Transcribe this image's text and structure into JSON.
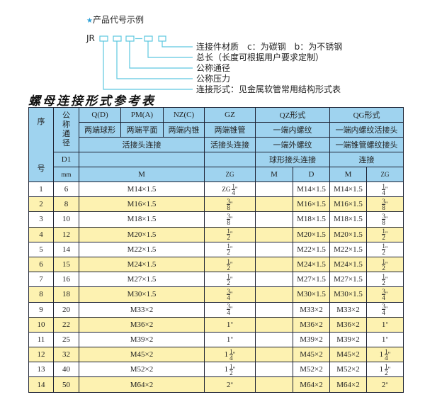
{
  "example": {
    "star_icon": "star",
    "heading": "产品代号示例",
    "code_prefix": "JR",
    "dash": "-",
    "line_color": "#5ec8e0",
    "labels": [
      "连接件材质　c：为碳钢　b：为不锈钢",
      "总长（长度可根据用户要求定制）",
      "公称通径",
      "公称压力",
      "连接形式：见金属软管常用结构形式表"
    ]
  },
  "table_title": "螺母连接形式参考表",
  "table": {
    "header": {
      "seq_top": "序",
      "seq_bottom": "号",
      "nominal": "公称通径",
      "qd": "Q(D)",
      "pma": "PM(A)",
      "nzc": "NZ(C)",
      "gz": "GZ",
      "qz": "QZ形式",
      "qg": "QG形式",
      "r2": [
        "两端球形",
        "两端平面",
        "两端内锥",
        "两端锥管",
        "一端内螺纹",
        "一端内螺纹活接头"
      ],
      "r3": [
        "活接头连接",
        "活接头连接",
        "一端外螺纹",
        "一端锥管螺纹接头"
      ],
      "d1": "D1",
      "r4_qz": "球形接头连接",
      "r4_qg": "连接",
      "mm": "mm",
      "r5": [
        "M",
        "ZG",
        "M",
        "D",
        "M",
        "ZG"
      ]
    },
    "rows": [
      {
        "no": "1",
        "d1": "6",
        "m": "M14×1.5",
        "zg": {
          "pre": "ZG",
          "w": "",
          "n": "1",
          "d": "4"
        },
        "qz_m": "",
        "qz_d": "M14×1.5",
        "qg_m": "M14×1.5",
        "qg_zg": {
          "w": "",
          "n": "1",
          "d": "4"
        }
      },
      {
        "no": "2",
        "d1": "8",
        "m": "M16×1.5",
        "zg": {
          "w": "",
          "n": "3",
          "d": "8"
        },
        "qz_m": "",
        "qz_d": "M16×1.5",
        "qg_m": "M16×1.5",
        "qg_zg": {
          "w": "",
          "n": "3",
          "d": "8"
        }
      },
      {
        "no": "3",
        "d1": "10",
        "m": "M18×1.5",
        "zg": {
          "w": "",
          "n": "3",
          "d": "8"
        },
        "qz_m": "",
        "qz_d": "M18×1.5",
        "qg_m": "M18×1.5",
        "qg_zg": {
          "w": "",
          "n": "3",
          "d": "8"
        }
      },
      {
        "no": "4",
        "d1": "12",
        "m": "M20×1.5",
        "zg": {
          "w": "",
          "n": "1",
          "d": "2"
        },
        "qz_m": "",
        "qz_d": "M20×1.5",
        "qg_m": "M20×1.5",
        "qg_zg": {
          "w": "",
          "n": "1",
          "d": "2"
        }
      },
      {
        "no": "5",
        "d1": "14",
        "m": "M22×1.5",
        "zg": {
          "w": "",
          "n": "1",
          "d": "2"
        },
        "qz_m": "",
        "qz_d": "M22×1.5",
        "qg_m": "M22×1.5",
        "qg_zg": {
          "w": "",
          "n": "1",
          "d": "2"
        }
      },
      {
        "no": "6",
        "d1": "15",
        "m": "M24×1.5",
        "zg": {
          "w": "",
          "n": "1",
          "d": "2"
        },
        "qz_m": "",
        "qz_d": "M24×1.5",
        "qg_m": "M24×1.5",
        "qg_zg": {
          "w": "",
          "n": "1",
          "d": "2"
        }
      },
      {
        "no": "7",
        "d1": "16",
        "m": "M27×1.5",
        "zg": {
          "w": "",
          "n": "1",
          "d": "2"
        },
        "qz_m": "",
        "qz_d": "M27×1.5",
        "qg_m": "M27×1.5",
        "qg_zg": {
          "w": "",
          "n": "1",
          "d": "2"
        }
      },
      {
        "no": "8",
        "d1": "18",
        "m": "M30×1.5",
        "zg": {
          "w": "",
          "n": "3",
          "d": "4"
        },
        "qz_m": "",
        "qz_d": "M30×1.5",
        "qg_m": "M30×1.5",
        "qg_zg": {
          "w": "",
          "n": "3",
          "d": "4"
        }
      },
      {
        "no": "9",
        "d1": "20",
        "m": "M33×2",
        "zg": {
          "w": "",
          "n": "3",
          "d": "4"
        },
        "qz_m": "",
        "qz_d": "M33×2",
        "qg_m": "M33×2",
        "qg_zg": {
          "w": "",
          "n": "3",
          "d": "4"
        }
      },
      {
        "no": "10",
        "d1": "22",
        "m": "M36×2",
        "zg": {
          "w": "1",
          "n": "",
          "d": ""
        },
        "qz_m": "",
        "qz_d": "M36×2",
        "qg_m": "M36×2",
        "qg_zg": {
          "w": "1",
          "n": "",
          "d": ""
        }
      },
      {
        "no": "11",
        "d1": "25",
        "m": "M39×2",
        "zg": {
          "w": "1",
          "n": "",
          "d": ""
        },
        "qz_m": "",
        "qz_d": "M39×2",
        "qg_m": "M39×2",
        "qg_zg": {
          "w": "1",
          "n": "",
          "d": ""
        }
      },
      {
        "no": "12",
        "d1": "32",
        "m": "M45×2",
        "zg": {
          "w": "1",
          "n": "1",
          "d": "4"
        },
        "qz_m": "",
        "qz_d": "M45×2",
        "qg_m": "M45×2",
        "qg_zg": {
          "w": "1",
          "n": "1",
          "d": "4"
        }
      },
      {
        "no": "13",
        "d1": "40",
        "m": "M52×2",
        "zg": {
          "w": "1",
          "n": "1",
          "d": "2"
        },
        "qz_m": "",
        "qz_d": "M52×2",
        "qg_m": "M52×2",
        "qg_zg": {
          "w": "1",
          "n": "1",
          "d": "2"
        }
      },
      {
        "no": "14",
        "d1": "50",
        "m": "M64×2",
        "zg": {
          "w": "2",
          "n": "",
          "d": ""
        },
        "qz_m": "",
        "qz_d": "M64×2",
        "qg_m": "M64×2",
        "qg_zg": {
          "w": "2",
          "n": "",
          "d": ""
        }
      }
    ]
  }
}
